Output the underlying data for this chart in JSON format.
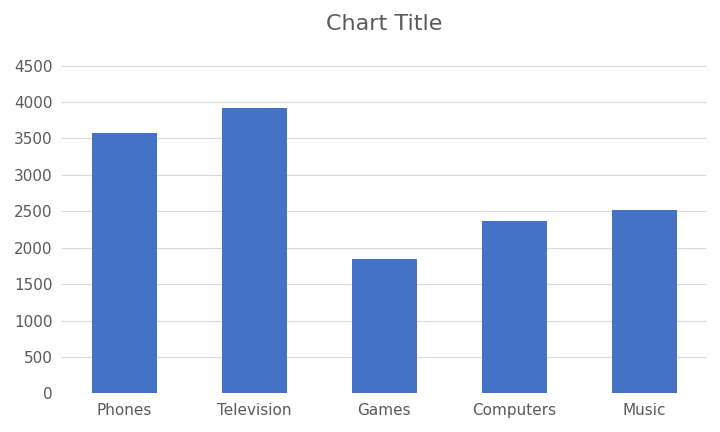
{
  "title": "Chart Title",
  "categories": [
    "Phones",
    "Television",
    "Games",
    "Computers",
    "Music"
  ],
  "values": [
    3580,
    3920,
    1850,
    2370,
    2520
  ],
  "bar_color": "#4472C4",
  "ylim": [
    0,
    4800
  ],
  "yticks": [
    0,
    500,
    1000,
    1500,
    2000,
    2500,
    3000,
    3500,
    4000,
    4500
  ],
  "title_fontsize": 16,
  "tick_fontsize": 11,
  "title_color": "#595959",
  "tick_color": "#595959",
  "background_color": "#ffffff",
  "grid_color": "#d9d9d9",
  "bar_width": 0.5
}
